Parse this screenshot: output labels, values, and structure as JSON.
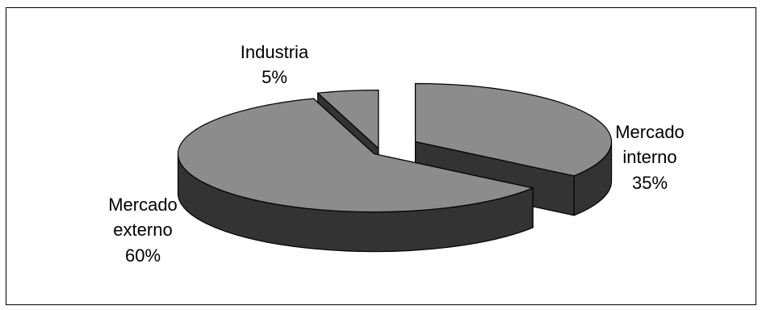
{
  "chart_data": {
    "type": "pie",
    "variant": "3d-exploded",
    "title": "",
    "slices": [
      {
        "name": "Mercado interno",
        "value": 35,
        "label_lines": [
          "Mercado",
          "interno",
          "35%"
        ]
      },
      {
        "name": "Mercado externo",
        "value": 60,
        "label_lines": [
          "Mercado",
          "externo",
          "60%"
        ]
      },
      {
        "name": "Industria",
        "value": 5,
        "label_lines": [
          "Industria",
          "5%"
        ]
      }
    ],
    "colors": {
      "top": "#8c8c8c",
      "side": "#333333",
      "outline": "#000000",
      "background": "#ffffff",
      "border": "#000000"
    },
    "legend": "none"
  }
}
